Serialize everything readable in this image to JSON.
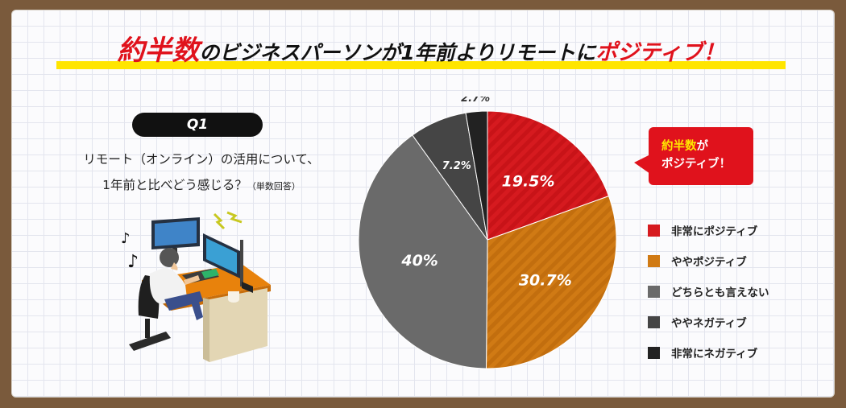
{
  "headline": {
    "part1": "約半数",
    "part2": "のビジネスパーソンが1年前よりリモートに",
    "part3": "ポジティブ！"
  },
  "question": {
    "badge": "Q1",
    "line1": "リモート（オンライン）の活用について、",
    "line2": "1年前と比べどう感じる？",
    "note": "（単数回答）"
  },
  "callout": {
    "line1_highlight": "約半数",
    "line1_rest": "が",
    "line2": "ポジティブ！"
  },
  "colors": {
    "very_positive": "#d61a1f",
    "somewhat_positive": "#d07a14",
    "neutral": "#6a6a6a",
    "somewhat_negative": "#454545",
    "very_negative": "#222222",
    "accent_red": "#e0121c",
    "accent_yellow": "#ffe500"
  },
  "chart_data": {
    "type": "pie",
    "title": "",
    "series": [
      {
        "name": "",
        "values": [
          19.5,
          30.7,
          40,
          7.2,
          2.7
        ]
      }
    ],
    "categories": [
      "非常にポジティブ",
      "ややポジティブ",
      "どちらとも言えない",
      "ややネガティブ",
      "非常にネガティブ"
    ],
    "data_labels": [
      "19.5%",
      "30.7%",
      "40%",
      "7.2%",
      "2.7%"
    ],
    "legend_position": "right"
  }
}
